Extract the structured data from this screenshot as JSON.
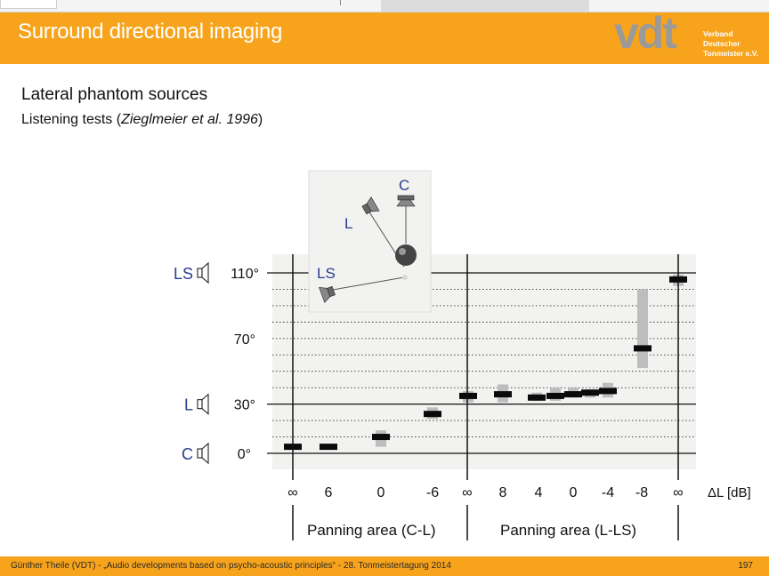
{
  "header": {
    "title": "Surround directional imaging",
    "logo_text": "vdt",
    "logo_sub": [
      "Verband Deutscher",
      "Tonmeister e.V."
    ]
  },
  "slide": {
    "heading": "Lateral phantom sources",
    "subheading_prefix": "Listening tests (",
    "subheading_citation": "Zieglmeier et al. 1996",
    "subheading_suffix": ")"
  },
  "chart_data": {
    "type": "range",
    "x_tick_labels": [
      "∞",
      "6",
      "0",
      "-6",
      "∞",
      "8",
      "4",
      "0",
      "-4",
      "-8",
      "∞"
    ],
    "x_unit_label": "ΔL  [dB]",
    "y_tick_labels": [
      {
        "value": 0,
        "label": "0°"
      },
      {
        "value": 30,
        "label": "30°"
      },
      {
        "value": 70,
        "label": "70°"
      },
      {
        "value": 110,
        "label": "110°"
      }
    ],
    "y_speaker_labels": [
      {
        "value": 0,
        "label": "C"
      },
      {
        "value": 30,
        "label": "L"
      },
      {
        "value": 110,
        "label": "LS"
      }
    ],
    "ylim": [
      -5,
      120
    ],
    "grid": "dotted every 10°, solid at 0°, 30°, 110°",
    "regions": [
      "Panning area (C-L)",
      "Panning area (L-LS)"
    ],
    "points": [
      {
        "x": "∞",
        "median": 4,
        "low": 4,
        "high": 4
      },
      {
        "x": "6",
        "median": 4,
        "low": 4,
        "high": 4
      },
      {
        "x": "0",
        "median": 10,
        "low": 4,
        "high": 14
      },
      {
        "x": "-6",
        "median": 24,
        "low": 21,
        "high": 28
      },
      {
        "x": "∞",
        "median": 35,
        "low": 31,
        "high": 38
      },
      {
        "x": "8",
        "median": 36,
        "low": 31,
        "high": 42
      },
      {
        "x": "4",
        "median": 34,
        "low": 32,
        "high": 37
      },
      {
        "x": "4",
        "median": 35,
        "low": 32,
        "high": 40
      },
      {
        "x": "0",
        "median": 36,
        "low": 34,
        "high": 40
      },
      {
        "x": "0",
        "median": 37,
        "low": 34,
        "high": 39
      },
      {
        "x": "-4",
        "median": 38,
        "low": 34,
        "high": 43
      },
      {
        "x": "-8",
        "median": 64,
        "low": 52,
        "high": 100
      },
      {
        "x": "∞",
        "median": 106,
        "low": 102,
        "high": 109
      }
    ],
    "inset_labels": [
      "C",
      "L",
      "LS"
    ]
  },
  "footer": {
    "text": "Günther Theile  (VDT)   -   „Audio developments based on psycho-acoustic principles“    -    28. Tonmeistertagung 2014",
    "page": "197"
  }
}
